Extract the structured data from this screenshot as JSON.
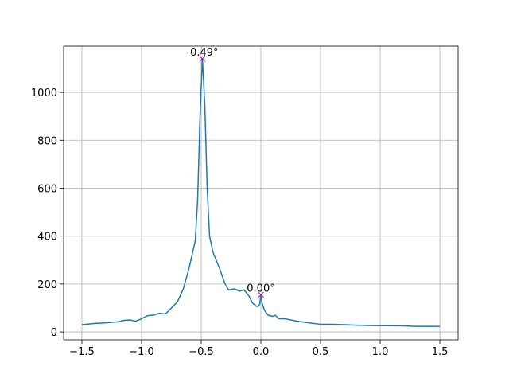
{
  "chart_data": {
    "type": "line",
    "x": [
      -1.5,
      -1.4,
      -1.3,
      -1.2,
      -1.15,
      -1.1,
      -1.05,
      -1.0,
      -0.95,
      -0.9,
      -0.85,
      -0.8,
      -0.75,
      -0.7,
      -0.65,
      -0.6,
      -0.55,
      -0.53,
      -0.51,
      -0.49,
      -0.47,
      -0.45,
      -0.43,
      -0.4,
      -0.35,
      -0.3,
      -0.27,
      -0.22,
      -0.18,
      -0.14,
      -0.1,
      -0.07,
      -0.03,
      -0.01,
      0.0,
      0.01,
      0.03,
      0.06,
      0.1,
      0.12,
      0.15,
      0.2,
      0.3,
      0.4,
      0.5,
      0.6,
      0.7,
      0.8,
      0.9,
      1.0,
      1.2,
      1.3,
      1.5
    ],
    "series": [
      {
        "color": "#1f77b4",
        "values": [
          30,
          35,
          38,
          42,
          48,
          50,
          45,
          55,
          68,
          70,
          78,
          75,
          100,
          125,
          180,
          270,
          380,
          550,
          900,
          1140,
          950,
          600,
          400,
          330,
          270,
          200,
          175,
          180,
          170,
          175,
          150,
          120,
          105,
          115,
          155,
          120,
          90,
          70,
          65,
          70,
          55,
          55,
          45,
          38,
          32,
          32,
          30,
          28,
          27,
          26,
          25,
          23,
          23
        ]
      }
    ],
    "peaks": [
      {
        "x": -0.49,
        "y": 1140,
        "label": "-0.49°"
      },
      {
        "x": 0.0,
        "y": 155,
        "label": "0.00°"
      }
    ],
    "peak_color": "#bf00bf",
    "xlim": [
      -1.653,
      1.653
    ],
    "ylim": [
      -33,
      1193
    ],
    "xticks": [
      {
        "value": -1.5,
        "label": "−1.5"
      },
      {
        "value": -1.0,
        "label": "−1.0"
      },
      {
        "value": -0.5,
        "label": "−0.5"
      },
      {
        "value": 0.0,
        "label": "0.0"
      },
      0.5,
      {
        "value": 1.0,
        "label": "1.0"
      },
      1.5
    ],
    "yticks": [
      0,
      200,
      400,
      600,
      800,
      1000
    ],
    "grid": true
  }
}
